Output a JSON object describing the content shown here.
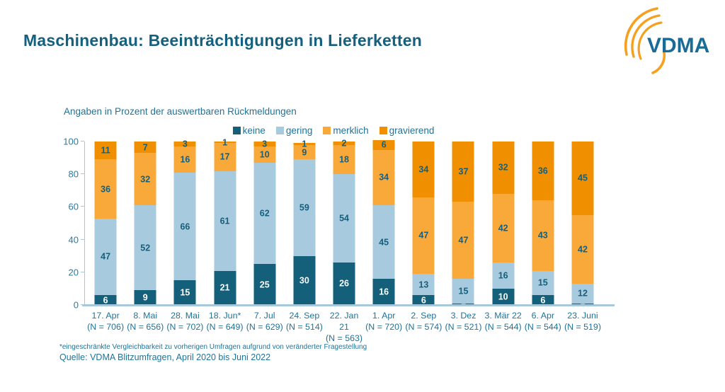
{
  "header": {
    "title": "Maschinenbau: Beeinträchtigungen in Lieferketten",
    "logo_text": "VDMA"
  },
  "colors": {
    "title_text": "#14607f",
    "body_text": "#1f7398",
    "axis_line": "#a5c8dc",
    "logo_blue": "#1a6b96",
    "logo_orange": "#f6a01f"
  },
  "chart_data": {
    "type": "bar",
    "stacked": true,
    "subtitle": "Angaben in Prozent der auswertbaren Rückmeldungen",
    "xlabel": "",
    "ylabel": "",
    "ylim": [
      0,
      100
    ],
    "y_ticks": [
      0,
      20,
      40,
      60,
      80,
      100
    ],
    "grid": false,
    "legend_position": "top",
    "categories": [
      [
        "17. Apr",
        "(N = 706)"
      ],
      [
        "8. Mai",
        "(N = 656)"
      ],
      [
        "28. Mai",
        "(N = 702)"
      ],
      [
        "18. Jun*",
        "(N = 649)"
      ],
      [
        "7. Jul",
        "(N = 629)"
      ],
      [
        "24. Sep",
        "(N = 514)"
      ],
      [
        "22. Jan",
        "21",
        "(N = 563)"
      ],
      [
        "1. Apr",
        "(N = 720)"
      ],
      [
        "2. Sep",
        "(N = 574)"
      ],
      [
        "3. Dez",
        "(N = 521)"
      ],
      [
        "3. Mär 22",
        "(N = 544)"
      ],
      [
        "6. Apr",
        "(N = 544)"
      ],
      [
        "23. Juni",
        "(N = 519)"
      ]
    ],
    "series": [
      {
        "name": "keine",
        "color": "#145f7a",
        "label_color": "#ffffff",
        "values": [
          6,
          9,
          15,
          21,
          25,
          30,
          26,
          16,
          6,
          1,
          10,
          6,
          1
        ]
      },
      {
        "name": "gering",
        "color": "#a8cade",
        "label_color": "#155f7c",
        "values": [
          47,
          52,
          66,
          61,
          62,
          59,
          54,
          45,
          13,
          15,
          16,
          15,
          12
        ]
      },
      {
        "name": "merklich",
        "color": "#f9a93a",
        "label_color": "#155f7c",
        "values": [
          36,
          32,
          16,
          17,
          10,
          9,
          18,
          34,
          47,
          47,
          42,
          43,
          42
        ]
      },
      {
        "name": "gravierend",
        "color": "#f09000",
        "label_color": "#155f7c",
        "values": [
          11,
          7,
          3,
          1,
          3,
          1,
          2,
          6,
          34,
          37,
          32,
          36,
          45
        ]
      }
    ]
  },
  "footer": {
    "footnote": "*eingeschränkte Vergleichbarkeit zu vorherigen Umfragen aufgrund von veränderter Fragestellung",
    "source": "Quelle: VDMA Blitzumfragen, April 2020 bis Juni 2022"
  }
}
